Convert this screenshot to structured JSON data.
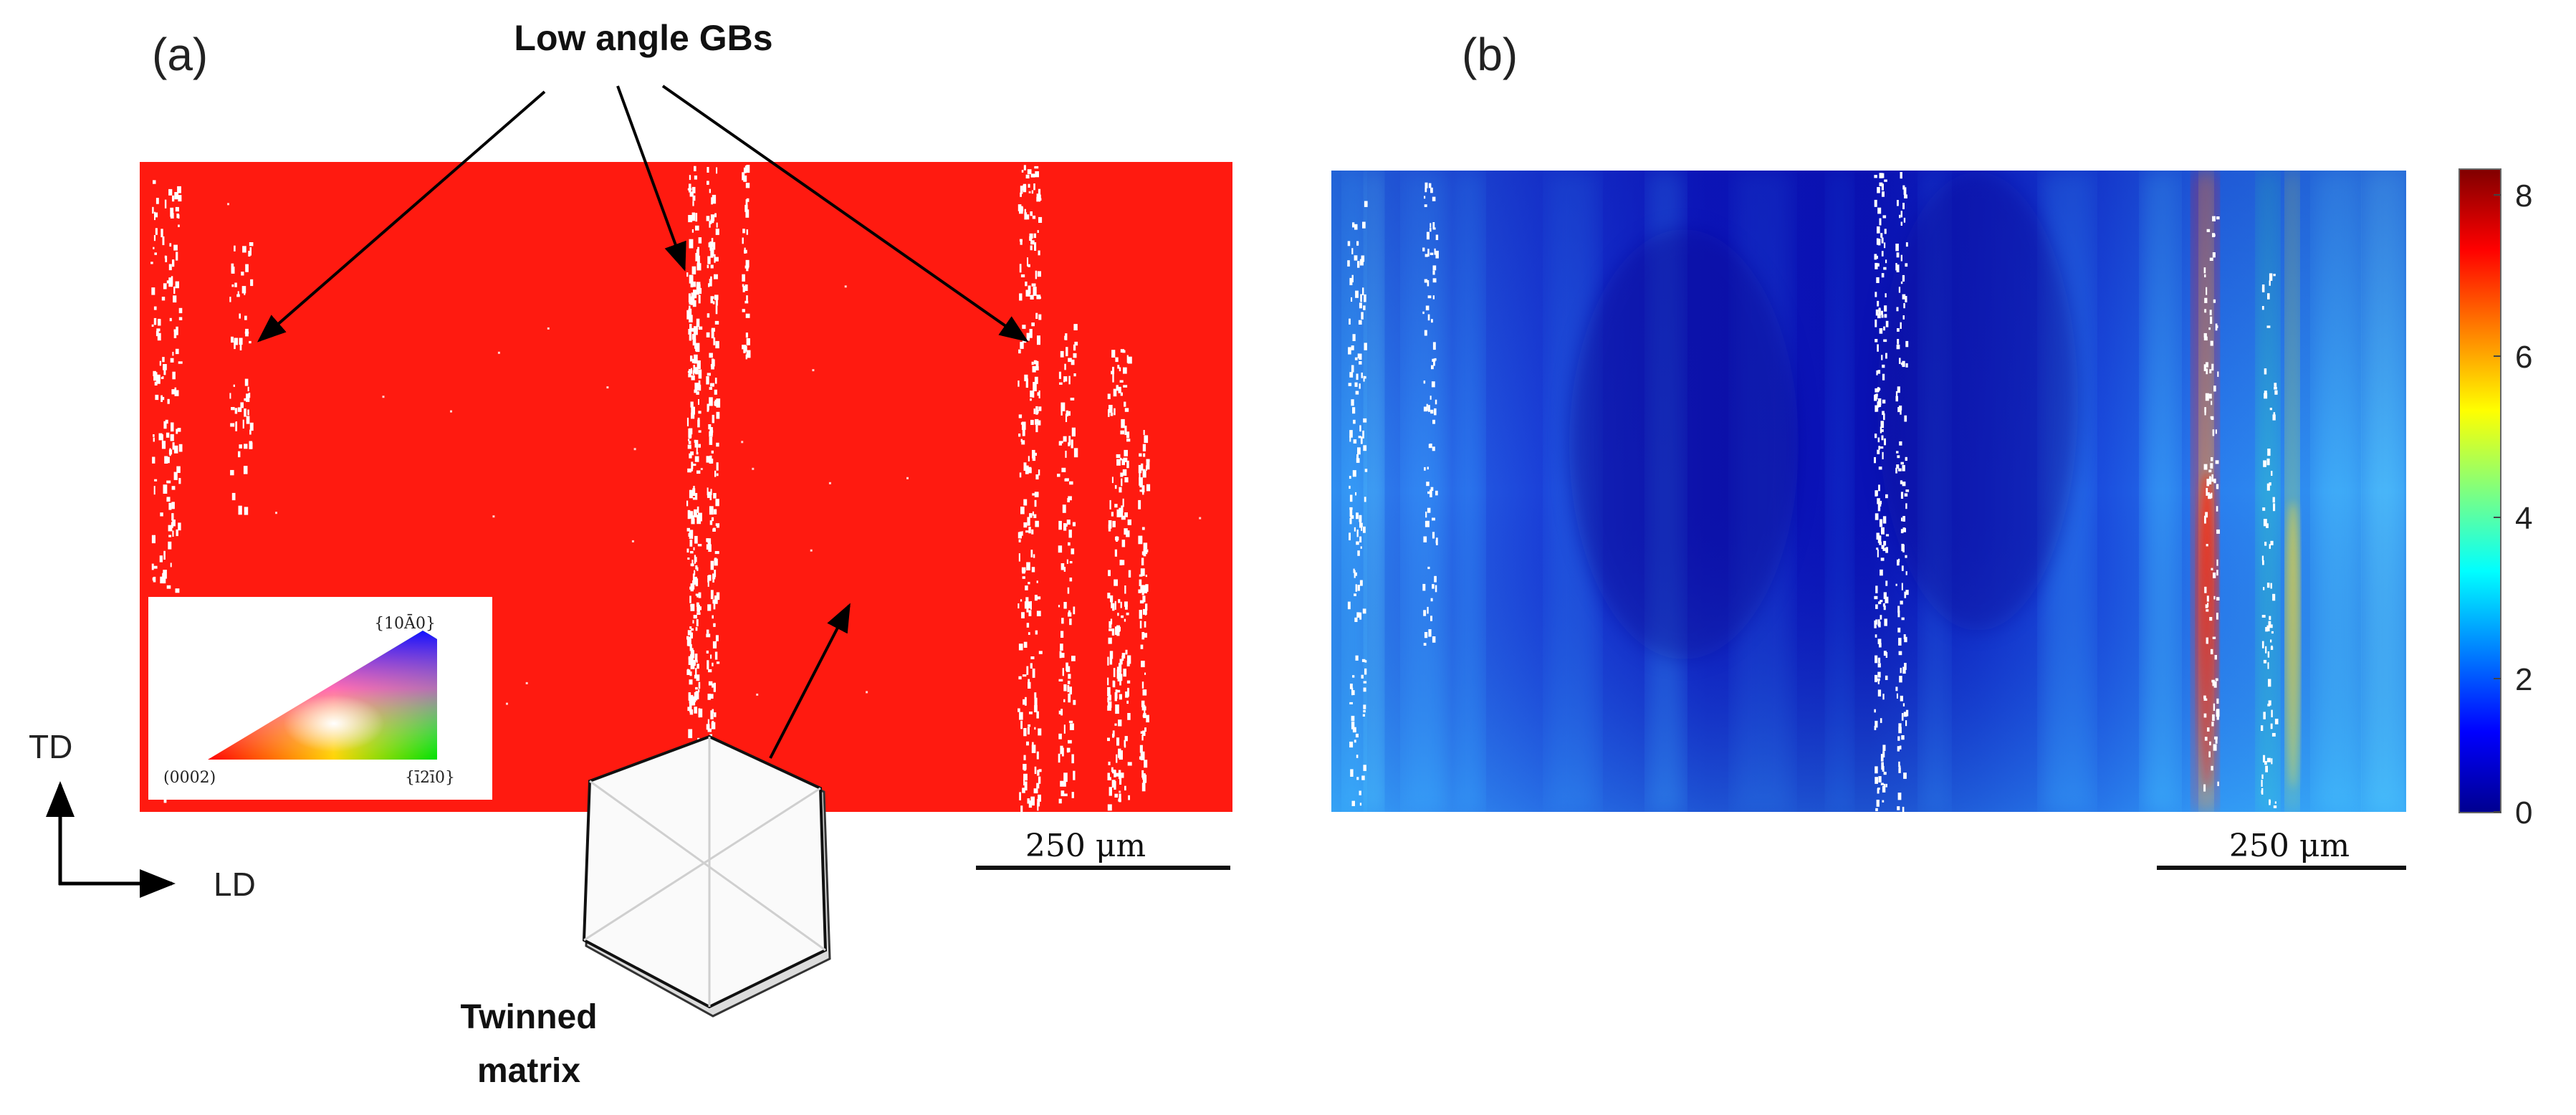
{
  "panel_a": {
    "label": "(a)",
    "annotation_top": "Low angle GBs",
    "annotation_bottom": {
      "line1": "Twinned",
      "line2": "matrix"
    },
    "scale_bar": "250 μm",
    "map_color": "#ff1a10",
    "axes": {
      "vertical": "TD",
      "horizontal": "LD"
    },
    "ipf_key": {
      "top": "{10Ā0}",
      "left": "(0002)",
      "right": "{ī2ī0}"
    }
  },
  "panel_b": {
    "label": "(b)",
    "scale_bar": "250 μm",
    "colorbar_ticks": [
      "8",
      "6",
      "4",
      "2",
      "0"
    ]
  },
  "colors": {
    "red": "#ff1a10",
    "dark_blue": "#0b0fb4",
    "mid_blue": "#1f50e6",
    "cyan": "#33b8ff",
    "boundary": "#ffffff"
  },
  "icons": [
    "hexagonal-crystal-icon",
    "arrow-icon",
    "ipf-triangle-icon",
    "colorbar-icon"
  ]
}
